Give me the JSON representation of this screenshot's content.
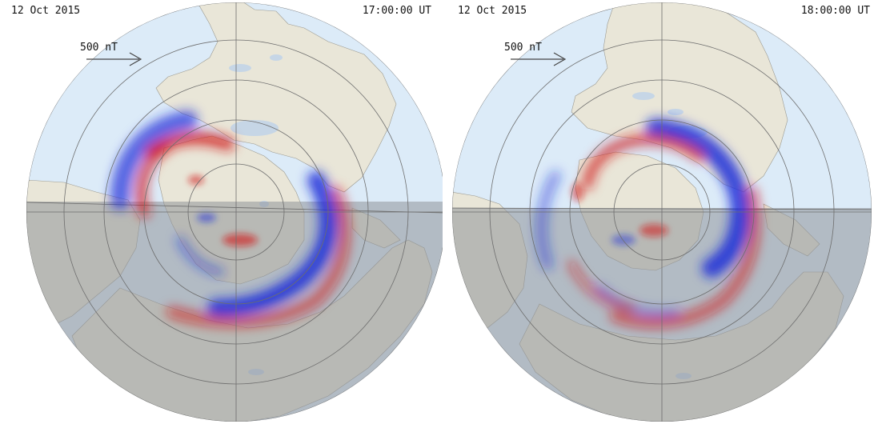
{
  "panels": [
    {
      "date": "12 Oct 2015",
      "time": "17:00:00 UT",
      "scale_label": "500 nT"
    },
    {
      "date": "12 Oct 2015",
      "time": "18:00:00 UT",
      "scale_label": "500 nT"
    }
  ],
  "colors": {
    "ocean": "#dcebf8",
    "land": "#e9e6d8",
    "night_shade": "#b4b7bb",
    "grid": "#6d6d6d",
    "positive": "#d01818",
    "negative": "#1a2ad8"
  }
}
